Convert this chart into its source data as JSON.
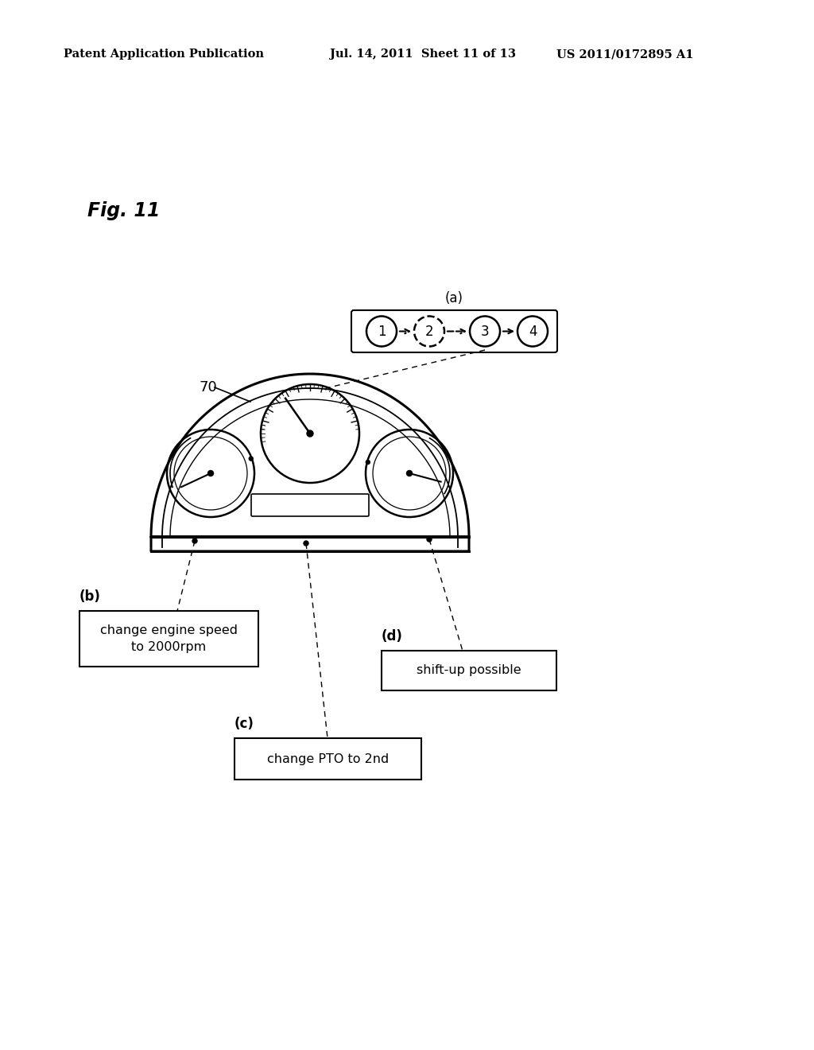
{
  "bg_color": "#ffffff",
  "header_left": "Patent Application Publication",
  "header_mid": "Jul. 14, 2011  Sheet 11 of 13",
  "header_right": "US 2011/0172895 A1",
  "fig_label": "Fig. 11",
  "label_70": "70",
  "seq_label": "(a)",
  "seq_items": [
    "1",
    "2",
    "3",
    "4"
  ],
  "box_b_label": "(b)",
  "box_b_text": "change engine speed\nto 2000rpm",
  "box_c_label": "(c)",
  "box_c_text": "change PTO to 2nd",
  "box_d_label": "(d)",
  "box_d_text": "shift-up possible"
}
